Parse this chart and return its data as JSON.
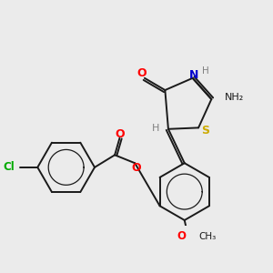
{
  "bg_color": "#ebebeb",
  "bond_color": "#1a1a1a",
  "colors": {
    "O": "#ff0000",
    "N": "#0000cc",
    "S": "#ccaa00",
    "Cl": "#00aa00",
    "H": "#808080",
    "C": "#1a1a1a"
  },
  "lw": 1.4,
  "lw_aromatic": 0.9
}
